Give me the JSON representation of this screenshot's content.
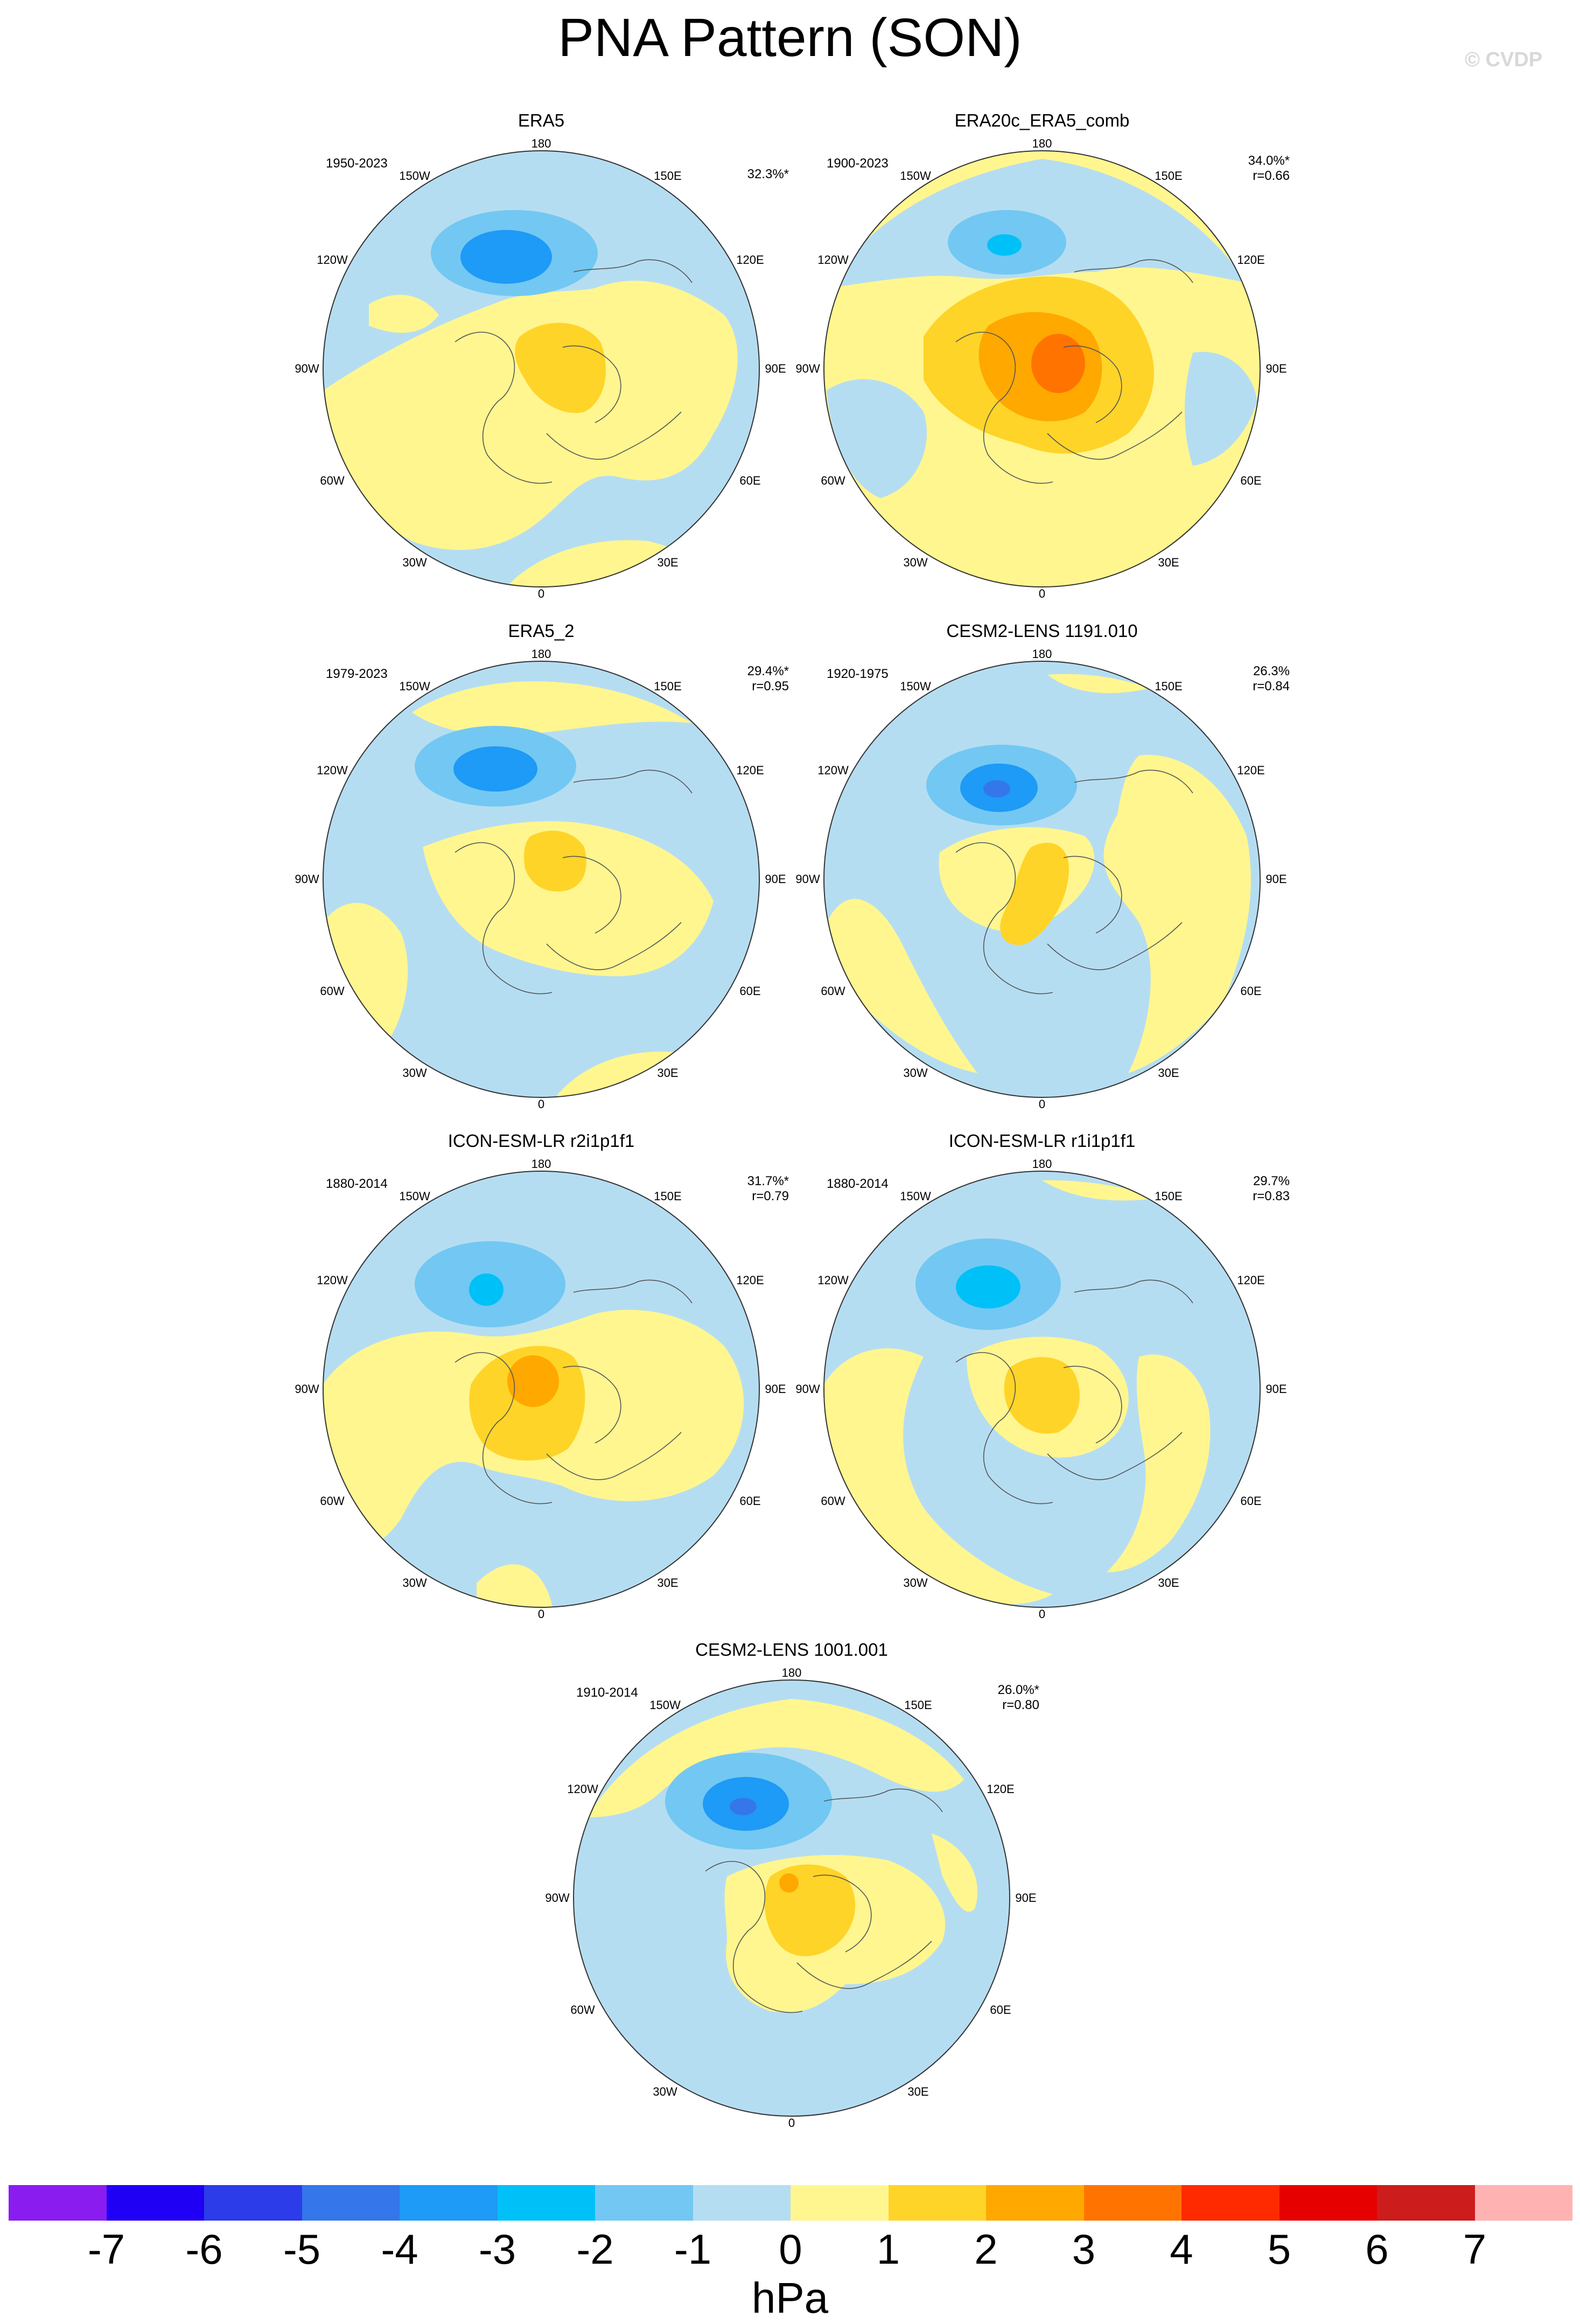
{
  "figure": {
    "title": "PNA Pattern (SON)",
    "watermark": "© CVDP"
  },
  "axes_labels": {
    "lon_180": "180",
    "lon_150w": "150W",
    "lon_150e": "150E",
    "lon_120w": "120W",
    "lon_120e": "120E",
    "lon_90w": "90W",
    "lon_90e": "90E",
    "lon_60w": "60W",
    "lon_60e": "60E",
    "lon_30w": "30W",
    "lon_30e": "30E",
    "lon_0": "0"
  },
  "panels": [
    {
      "id": "era5",
      "title": "ERA5",
      "period": "1950-2023",
      "pct": "32.3%*",
      "corr": ""
    },
    {
      "id": "era20c",
      "title": "ERA20c_ERA5_comb",
      "period": "1900-2023",
      "pct": "34.0%*",
      "corr": "r=0.66"
    },
    {
      "id": "era5_2",
      "title": "ERA5_2",
      "period": "1979-2023",
      "pct": "29.4%*",
      "corr": "r=0.95"
    },
    {
      "id": "cesm1191",
      "title": "CESM2-LENS 1191.010",
      "period": "1920-1975",
      "pct": "26.3%",
      "corr": "r=0.84"
    },
    {
      "id": "icon_r2",
      "title": "ICON-ESM-LR r2i1p1f1",
      "period": "1880-2014",
      "pct": "31.7%*",
      "corr": "r=0.79"
    },
    {
      "id": "icon_r1",
      "title": "ICON-ESM-LR r1i1p1f1",
      "period": "1880-2014",
      "pct": "29.7%",
      "corr": "r=0.83"
    },
    {
      "id": "cesm1001",
      "title": "CESM2-LENS 1001.001",
      "period": "1910-2014",
      "pct": "26.0%*",
      "corr": "r=0.80"
    }
  ],
  "colorbar": {
    "units": "hPa",
    "colors": [
      "#8a1cf0",
      "#2000f5",
      "#2c3ce8",
      "#3576ea",
      "#1e9af7",
      "#00c0f8",
      "#72c8f2",
      "#b5ddf2",
      "#fff690",
      "#ffd428",
      "#ffa800",
      "#ff7400",
      "#ff2a00",
      "#e60000",
      "#cc1c1c",
      "#ffb2b2"
    ],
    "ticks": [
      "-7",
      "-6",
      "-5",
      "-4",
      "-3",
      "-2",
      "-1",
      "0",
      "1",
      "2",
      "3",
      "4",
      "5",
      "6",
      "7"
    ]
  },
  "palette": {
    "light_blue": "#b5ddf2",
    "mid_blue": "#72c8f2",
    "cyan": "#00c0f8",
    "blue": "#1e9af7",
    "pale_yellow": "#fff690",
    "yellow": "#ffd428",
    "orange": "#ffa800",
    "dark_orange": "#ff7400"
  }
}
